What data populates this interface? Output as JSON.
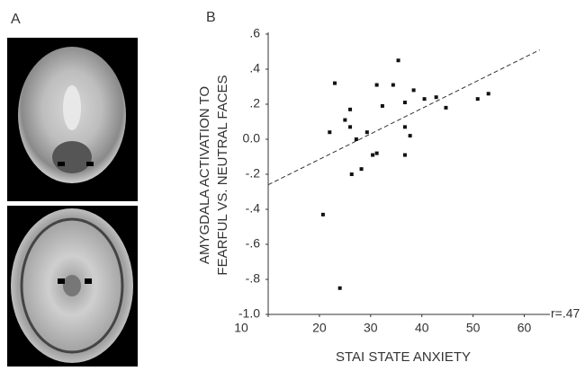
{
  "panel_labels": [
    "A",
    "B"
  ],
  "chart_data": {
    "type": "scatter",
    "x_label": "STAI STATE ANXIETY",
    "y_label": [
      "AMYGDALA  ACTIVATION TO",
      "FEARFUL VS. NEUTRAL FACES"
    ],
    "annotation": "r=.47",
    "color": "#111111",
    "x": [
      20.7,
      23,
      22,
      24,
      25,
      26,
      26,
      26.3,
      27.2,
      28.2,
      29.3,
      30.4,
      31.2,
      31.2,
      32.3,
      34.4,
      35.4,
      36.7,
      36.7,
      36.7,
      37.7,
      38.4,
      40.5,
      42.8,
      44.7,
      50.9,
      53
    ],
    "values": [
      -0.43,
      0.32,
      0.04,
      -0.85,
      0.11,
      0.17,
      0.07,
      -0.2,
      0.0,
      -0.17,
      0.04,
      -0.09,
      0.31,
      -0.08,
      0.19,
      0.31,
      0.45,
      0.07,
      0.21,
      -0.09,
      0.02,
      0.28,
      0.23,
      0.24,
      0.18,
      0.23,
      0.26
    ],
    "trend_line": {
      "x": [
        10,
        63
      ],
      "y": [
        -0.26,
        0.51
      ]
    },
    "xlim": [
      10,
      65
    ],
    "ylim": [
      -1.0,
      0.6
    ],
    "xticks": [
      10,
      20,
      30,
      40,
      50,
      60
    ],
    "yticks": [
      {
        "value": 0.6,
        "label": ".6"
      },
      {
        "value": 0.4,
        "label": ".4"
      },
      {
        "value": 0.2,
        "label": ".2"
      },
      {
        "value": 0,
        "label": "0.0"
      },
      {
        "value": -0.2,
        "label": "-.2"
      },
      {
        "value": -0.4,
        "label": "-.4"
      },
      {
        "value": -0.6,
        "label": "-.6"
      },
      {
        "value": -0.8,
        "label": "-.8"
      },
      {
        "value": -1.0,
        "label": "-1.0"
      }
    ]
  }
}
